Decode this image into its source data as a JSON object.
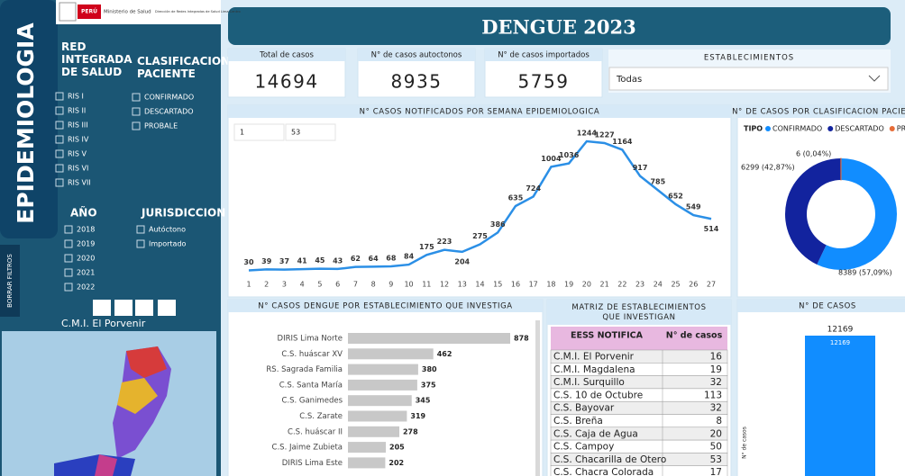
{
  "header": {
    "logo_country": "PERÚ",
    "logo_ministry": "Ministerio de Salud",
    "logo_network": "Dirección de Redes Integradas de Salud Lima Centro",
    "title": "DENGUE 2023"
  },
  "sidebar": {
    "title": "EPIDEMIOLOGIA",
    "clear_filters": "BORRAR FILTROS",
    "map_label": "C.M.I. El Porvenir",
    "filters": [
      {
        "label": "RED INTEGRADA DE SALUD",
        "options": [
          "RIS I",
          "RIS II",
          "RIS III",
          "RIS IV",
          "RIS V",
          "RIS VI",
          "RIS VII"
        ]
      },
      {
        "label": "CLASIFICACION PACIENTE",
        "options": [
          "CONFIRMADO",
          "DESCARTADO",
          "PROBALE"
        ]
      },
      {
        "label": "AÑO",
        "options": [
          "2018",
          "2019",
          "2020",
          "2021",
          "2022"
        ]
      },
      {
        "label": "JURISDICCION",
        "options": [
          "Autóctono",
          "Importado"
        ]
      }
    ]
  },
  "kpis": [
    {
      "label": "Total de casos",
      "value": 14694
    },
    {
      "label": "N° de casos autoctonos",
      "value": 8935
    },
    {
      "label": "N° de casos importados",
      "value": 5759
    }
  ],
  "dropdown": {
    "label": "ESTABLECIMIENTOS",
    "value": "Todas"
  },
  "chart_data": [
    {
      "type": "line",
      "title": "N° CASOS NOTIFICADOS POR SEMANA EPIDEMIOLOGICA",
      "range": [
        1,
        53
      ],
      "color": "#2b8fe6",
      "x": [
        1,
        2,
        3,
        4,
        5,
        6,
        7,
        8,
        9,
        10,
        11,
        12,
        13,
        14,
        15,
        16,
        17,
        18,
        19,
        20,
        21,
        22,
        23,
        24,
        25,
        26,
        27
      ],
      "values": [
        30,
        39,
        37,
        41,
        45,
        43,
        62,
        64,
        68,
        84,
        175,
        223,
        204,
        275,
        386,
        635,
        724,
        1004,
        1036,
        1244,
        1227,
        1164,
        917,
        785,
        652,
        549,
        514
      ]
    },
    {
      "type": "pie",
      "title": "N° DE CASOS POR CLASIFICACION PACIENTE",
      "legend_title": "TIPO",
      "categories": [
        "CONFIRMADO",
        "DESCARTADO",
        "PROBALE"
      ],
      "colors": [
        "#118dff",
        "#12239e",
        "#e66c37"
      ],
      "values": [
        8389,
        6299,
        6
      ],
      "value_labels": [
        "8389 (57,09%)",
        "6299 (42,87%)",
        "6 (0,04%)"
      ]
    },
    {
      "type": "bar",
      "orientation": "horizontal",
      "title": "N° CASOS DENGUE POR ESTABLECIMIENTO QUE INVESTIGA",
      "color": "#c8c8c8",
      "categories": [
        "DIRIS Lima Norte",
        "C.S. huáscar XV",
        "RS. Sagrada Familia",
        "C.S. Santa María",
        "C.S. Ganimedes",
        "C.S. Zarate",
        "C.S. huáscar II",
        "C.S. Jaime Zubieta",
        "DIRIS Lima Este"
      ],
      "values": [
        878,
        462,
        380,
        375,
        345,
        319,
        278,
        205,
        202
      ]
    },
    {
      "type": "bar",
      "orientation": "vertical",
      "title": "N° DE CASOS",
      "y_label": "N° de casos",
      "color": "#118dff",
      "values": [
        12169
      ]
    }
  ],
  "table": {
    "title": "MATRIZ DE ESTABLECIMIENTOS QUE INVESTIGAN",
    "columns": [
      "EESS NOTIFICA",
      "N° de casos"
    ],
    "rows": [
      [
        "C.M.I. El Porvenir",
        16
      ],
      [
        "C.M.I. Magdalena",
        19
      ],
      [
        "C.M.I. Surquillo",
        32
      ],
      [
        "C.S. 10 de Octubre",
        113
      ],
      [
        "C.S. Bayovar",
        32
      ],
      [
        "C.S. Breña",
        8
      ],
      [
        "C.S. Caja de Agua",
        20
      ],
      [
        "C.S. Campoy",
        50
      ],
      [
        "C.S. Chacarilla de Otero",
        53
      ],
      [
        "C.S. Chacra Colorada",
        17
      ]
    ]
  }
}
